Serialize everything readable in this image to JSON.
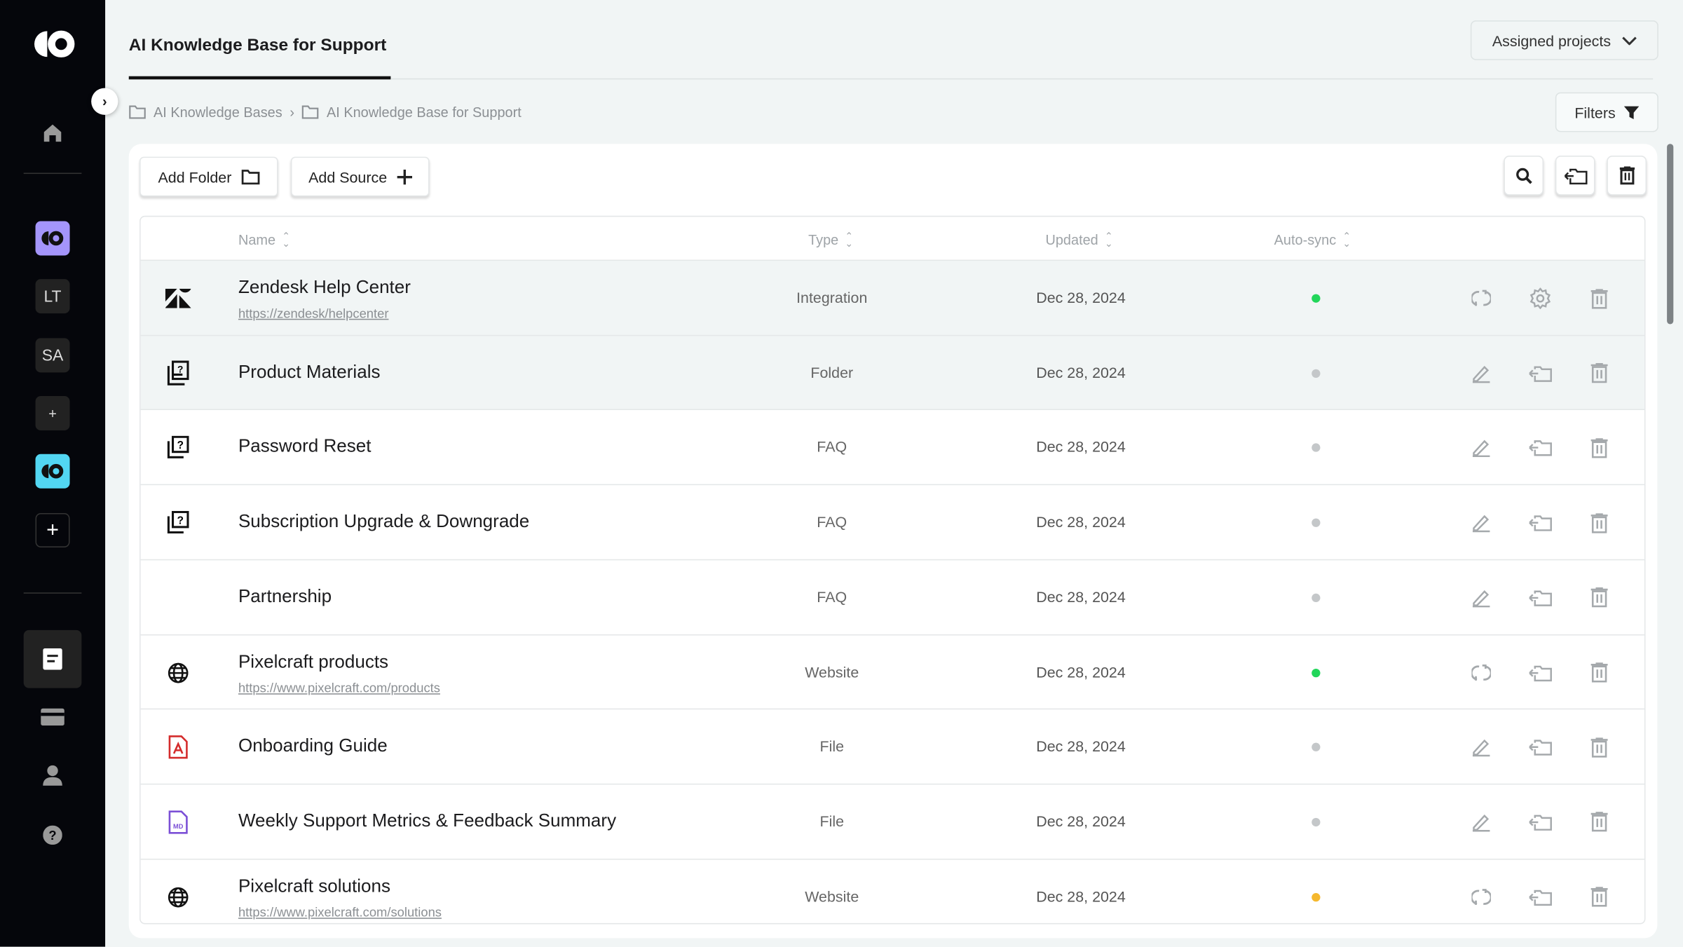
{
  "sidebar": {
    "items": [
      "LT",
      "SA",
      "+"
    ],
    "colors": {
      "purple": "#a495fb",
      "cyan": "#52d6f2"
    }
  },
  "header": {
    "title": "AI Knowledge Base for Support",
    "assigned": "Assigned projects",
    "filters": "Filters"
  },
  "breadcrumb": [
    "AI Knowledge Bases",
    "AI Knowledge Base for Support"
  ],
  "toolbar": {
    "add_folder": "Add Folder",
    "add_source": "Add Source"
  },
  "table": {
    "columns": [
      "Name",
      "Type",
      "Updated",
      "Auto-sync"
    ],
    "rows": [
      {
        "name": "Zendesk Help Center",
        "url": "https://zendesk/helpcenter",
        "type": "Integration",
        "updated": "Dec 28, 2024",
        "sync": "#22d65a",
        "icon": "zendesk-icon",
        "actions": [
          "sync",
          "settings",
          "delete"
        ]
      },
      {
        "name": "Product Materials",
        "url": "",
        "type": "Folder",
        "updated": "Dec 28, 2024",
        "sync": "#c4c7c9",
        "icon": "folder-stack-icon",
        "actions": [
          "edit",
          "move",
          "delete"
        ]
      },
      {
        "name": "Password Reset",
        "url": "",
        "type": "FAQ",
        "updated": "Dec 28, 2024",
        "sync": "#c4c7c9",
        "icon": "faq-icon",
        "actions": [
          "edit",
          "move",
          "delete"
        ]
      },
      {
        "name": "Subscription Upgrade & Downgrade",
        "url": "",
        "type": "FAQ",
        "updated": "Dec 28, 2024",
        "sync": "#c4c7c9",
        "icon": "faq-icon",
        "actions": [
          "edit",
          "move",
          "delete"
        ]
      },
      {
        "name": "Partnership",
        "url": "",
        "type": "FAQ",
        "updated": "Dec 28, 2024",
        "sync": "#c4c7c9",
        "icon": "",
        "actions": [
          "edit",
          "move",
          "delete"
        ]
      },
      {
        "name": "Pixelcraft products",
        "url": "https://www.pixelcraft.com/products",
        "type": "Website",
        "updated": "Dec 28, 2024",
        "sync": "#22d65a",
        "icon": "globe-icon",
        "actions": [
          "sync",
          "move",
          "delete"
        ]
      },
      {
        "name": "Onboarding Guide",
        "url": "",
        "type": "File",
        "updated": "Dec 28, 2024",
        "sync": "#c4c7c9",
        "icon": "pdf-icon",
        "actions": [
          "edit",
          "move",
          "delete"
        ]
      },
      {
        "name": "Weekly Support Metrics & Feedback Summary",
        "url": "",
        "type": "File",
        "updated": "Dec 28, 2024",
        "sync": "#c4c7c9",
        "icon": "md-file-icon",
        "actions": [
          "edit",
          "move",
          "delete"
        ]
      },
      {
        "name": "Pixelcraft solutions",
        "url": "https://www.pixelcraft.com/solutions",
        "type": "Website",
        "updated": "Dec 28, 2024",
        "sync": "#f5b82e",
        "icon": "globe-icon",
        "actions": [
          "sync",
          "move",
          "delete"
        ]
      }
    ]
  }
}
